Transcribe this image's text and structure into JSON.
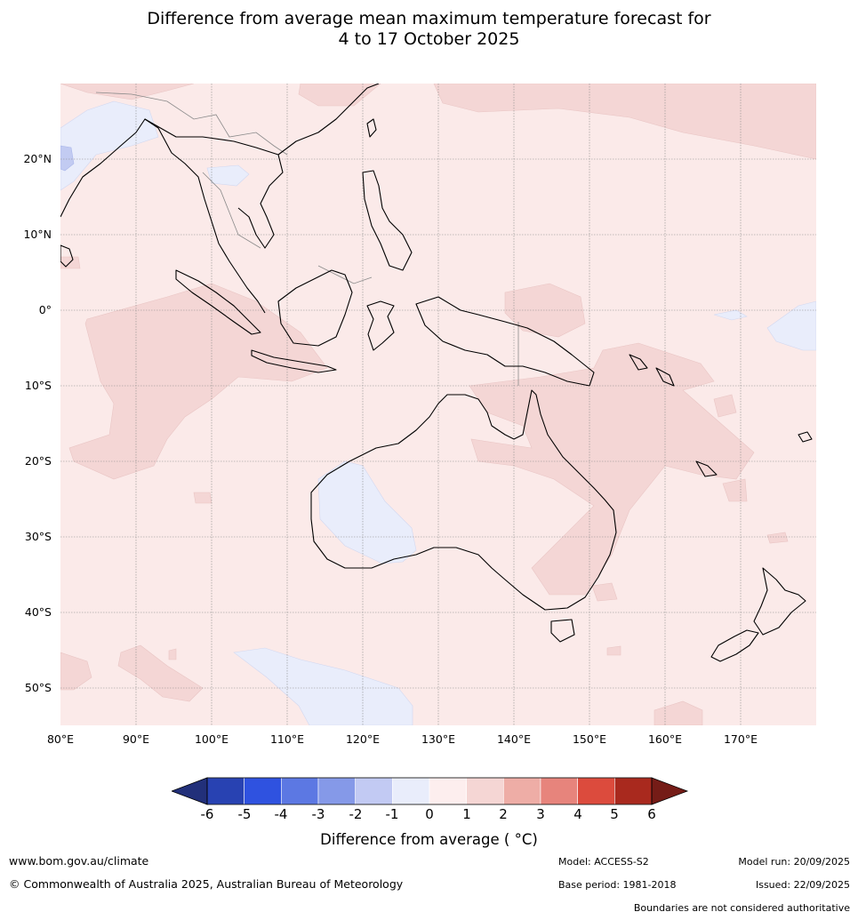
{
  "title": {
    "line1": "Difference from average mean maximum temperature forecast for",
    "line2": "4 to 17 October 2025"
  },
  "map": {
    "lon_range": [
      80,
      180
    ],
    "lat_range": [
      -55,
      30
    ],
    "lat_labels": [
      "20°N",
      "10°N",
      "0°",
      "10°S",
      "20°S",
      "30°S",
      "40°S",
      "50°S"
    ],
    "lon_labels": [
      "80°E",
      "90°E",
      "100°E",
      "110°E",
      "120°E",
      "130°E",
      "140°E",
      "150°E",
      "160°E",
      "170°E"
    ],
    "background_color": "#fbeae9",
    "regions_colors": {
      "warm_1_2": "#f4d6d5",
      "cool_0_m1": "#e9edfb",
      "cool_m1_m2": "#c2cbf2"
    }
  },
  "colorbar": {
    "title": "Difference from average ( °C)",
    "ticks": [
      "-6",
      "-5",
      "-4",
      "-3",
      "-2",
      "-1",
      "0",
      "1",
      "2",
      "3",
      "4",
      "5",
      "6"
    ],
    "colors": [
      "#22307a",
      "#2842b2",
      "#2f52e0",
      "#5c78e3",
      "#8599e8",
      "#c2caf3",
      "#e9edfb",
      "#fdeeee",
      "#f5d6d4",
      "#eeada6",
      "#e7847c",
      "#dc4b3d",
      "#a9291e",
      "#751c17"
    ]
  },
  "footer": {
    "website": "www.bom.gov.au/climate",
    "copyright": "© Commonwealth of Australia 2025, Australian Bureau of Meteorology",
    "model": "Model: ACCESS-S2",
    "base_period": "Base period: 1981-2018",
    "model_run": "Model run: 20/09/2025",
    "issued": "Issued: 22/09/2025",
    "disclaimer": "Boundaries are not considered authoritative"
  }
}
